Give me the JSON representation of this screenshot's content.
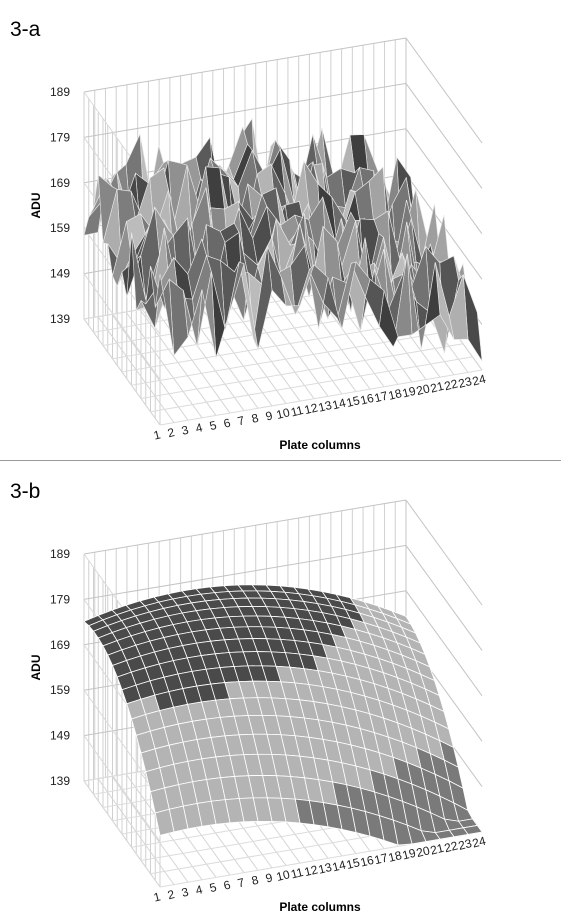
{
  "chart_data": [
    {
      "panel_label": "3-a",
      "type": "surface",
      "style": "noisy",
      "xlabel": "Plate columns",
      "ylabel": "ADU",
      "categories": [
        "1",
        "2",
        "3",
        "4",
        "5",
        "6",
        "7",
        "8",
        "9",
        "10",
        "11",
        "12",
        "13",
        "14",
        "15",
        "16",
        "17",
        "18",
        "19",
        "20",
        "21",
        "22",
        "23",
        "24"
      ],
      "y_ticks": [
        "139",
        "149",
        "159",
        "169",
        "179",
        "189"
      ],
      "ylim": [
        139,
        189
      ],
      "grid": true,
      "series_summary": {
        "min": 139,
        "max": 183,
        "mean": 160
      }
    },
    {
      "panel_label": "3-b",
      "type": "surface",
      "style": "smooth",
      "xlabel": "Plate columns",
      "ylabel": "ADU",
      "categories": [
        "1",
        "2",
        "3",
        "4",
        "5",
        "6",
        "7",
        "8",
        "9",
        "10",
        "11",
        "12",
        "13",
        "14",
        "15",
        "16",
        "17",
        "18",
        "19",
        "20",
        "21",
        "22",
        "23",
        "24"
      ],
      "y_ticks": [
        "139",
        "149",
        "159",
        "169",
        "179",
        "189"
      ],
      "ylim": [
        139,
        189
      ],
      "grid": true,
      "series_summary": {
        "min": 140,
        "max": 179,
        "mean": 160
      }
    }
  ],
  "colors": {
    "grid": "#c8c8c8",
    "surface_dark": "#4a4a4a",
    "surface_mid": "#7a7a7a",
    "surface_light": "#b4b4b4",
    "mesh": "#ffffff"
  }
}
